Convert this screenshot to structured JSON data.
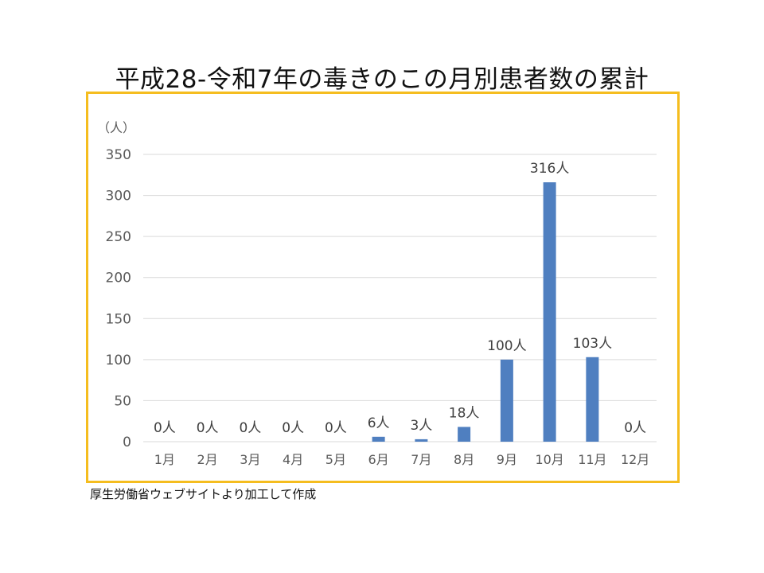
{
  "title": "平成28-令和7年の毒きのこの月別患者数の累計",
  "source": "厚生労働省ウェブサイトより加工して作成",
  "colors": {
    "bar": "#4f7fc0",
    "frame": "#f5bd1f",
    "grid": "#d9d9d9",
    "axis_text": "#595959"
  },
  "chart_data": {
    "type": "bar",
    "title": "平成28-令和7年の毒きのこの月別患者数の累計",
    "unit_label": "（人）",
    "categories": [
      "1月",
      "2月",
      "3月",
      "4月",
      "5月",
      "6月",
      "7月",
      "8月",
      "9月",
      "10月",
      "11月",
      "12月"
    ],
    "values": [
      0,
      0,
      0,
      0,
      0,
      6,
      3,
      18,
      100,
      316,
      103,
      0
    ],
    "data_labels": [
      "0人",
      "0人",
      "0人",
      "0人",
      "0人",
      "6人",
      "3人",
      "18人",
      "100人",
      "316人",
      "103人",
      "0人"
    ],
    "yticks": [
      "0",
      "50",
      "100",
      "150",
      "200",
      "250",
      "300",
      "350"
    ],
    "ylim": [
      0,
      350
    ],
    "grid": true,
    "legend": "none"
  }
}
